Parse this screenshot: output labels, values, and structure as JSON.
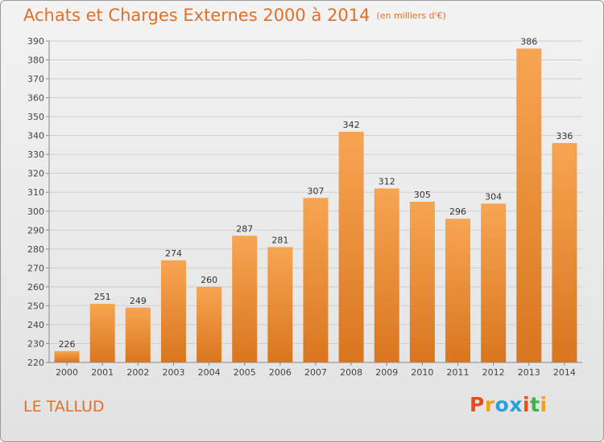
{
  "title": "Achats et Charges Externes 2000 à 2014",
  "subtitle": "(en milliers d'€)",
  "place": "LE TALLUD",
  "logo": [
    "P",
    "r",
    "o",
    "x",
    "i",
    "t",
    "i"
  ],
  "colors": {
    "title": "#e0702a",
    "bar_top": "#f7a552",
    "bar_bottom": "#d9761f",
    "logo": [
      "#e84c1f",
      "#f2a21a",
      "#2aa0d8",
      "#2aa0d8",
      "#e84c1f",
      "#3cb34a",
      "#f2a21a"
    ]
  },
  "chart_data": {
    "type": "bar",
    "categories": [
      "2000",
      "2001",
      "2002",
      "2003",
      "2004",
      "2005",
      "2006",
      "2007",
      "2008",
      "2009",
      "2010",
      "2011",
      "2012",
      "2013",
      "2014"
    ],
    "values": [
      226,
      251,
      249,
      274,
      260,
      287,
      281,
      307,
      342,
      312,
      305,
      296,
      304,
      386,
      336
    ],
    "ylim": [
      220,
      390
    ],
    "yticks": [
      220,
      230,
      240,
      250,
      260,
      270,
      280,
      290,
      300,
      310,
      320,
      330,
      340,
      350,
      360,
      370,
      380,
      390
    ],
    "grid": true,
    "data_labels": true
  }
}
